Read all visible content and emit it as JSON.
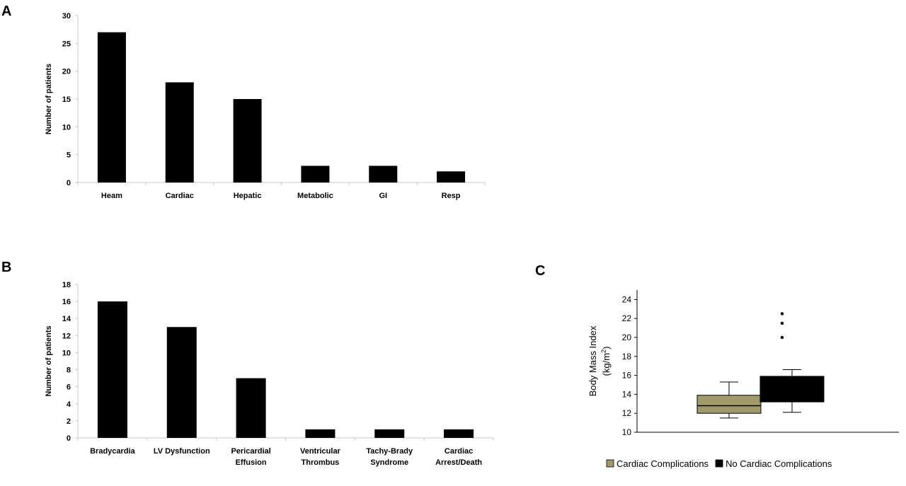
{
  "panels": {
    "a": "A",
    "b": "B",
    "c": "C"
  },
  "chart_data": [
    {
      "id": "A",
      "type": "bar",
      "ylabel": "Number of patients",
      "ylim": [
        0,
        30
      ],
      "yticks": [
        0,
        5,
        10,
        15,
        20,
        25,
        30
      ],
      "categories": [
        [
          "Heam"
        ],
        [
          "Cardiac"
        ],
        [
          "Hepatic"
        ],
        [
          "Metabolic"
        ],
        [
          "GI"
        ],
        [
          "Resp"
        ]
      ],
      "values": [
        27,
        18,
        15,
        3,
        3,
        2
      ],
      "bar_color": "#000000",
      "grid": false
    },
    {
      "id": "B",
      "type": "bar",
      "ylabel": "Number of patients",
      "ylim": [
        0,
        18
      ],
      "yticks": [
        0,
        2,
        4,
        6,
        8,
        10,
        12,
        14,
        16,
        18
      ],
      "categories": [
        [
          "Bradycardia"
        ],
        [
          "LV Dysfunction"
        ],
        [
          "Pericardial",
          "Effusion"
        ],
        [
          "Ventricular",
          "Thrombus"
        ],
        [
          "Tachy-Brady",
          "Syndrome"
        ],
        [
          "Cardiac",
          "Arrest/Death"
        ]
      ],
      "values": [
        16,
        13,
        7,
        1,
        1,
        1
      ],
      "bar_color": "#000000",
      "grid": false
    },
    {
      "id": "C",
      "type": "box",
      "ylabel": "Body Mass Index",
      "ylabel2": "(kg/m",
      "ylabel2_sup": "2",
      "ylabel2_end": ")",
      "ylim": [
        10,
        25
      ],
      "yticks": [
        10,
        12,
        14,
        16,
        18,
        20,
        22,
        24
      ],
      "series": [
        {
          "name": "Cardiac Complications",
          "color": "#a09a6a",
          "whisker_low": 11.5,
          "q1": 12.0,
          "median": 12.8,
          "q3": 13.9,
          "whisker_high": 15.3,
          "outliers": []
        },
        {
          "name": "No Cardiac Complications",
          "color": "#000000",
          "whisker_low": 12.1,
          "q1": 13.2,
          "median": 15.8,
          "q3": 15.9,
          "whisker_high": 16.6,
          "outliers": [
            20.0,
            21.5,
            22.5
          ]
        }
      ],
      "legend": "bottom"
    }
  ]
}
